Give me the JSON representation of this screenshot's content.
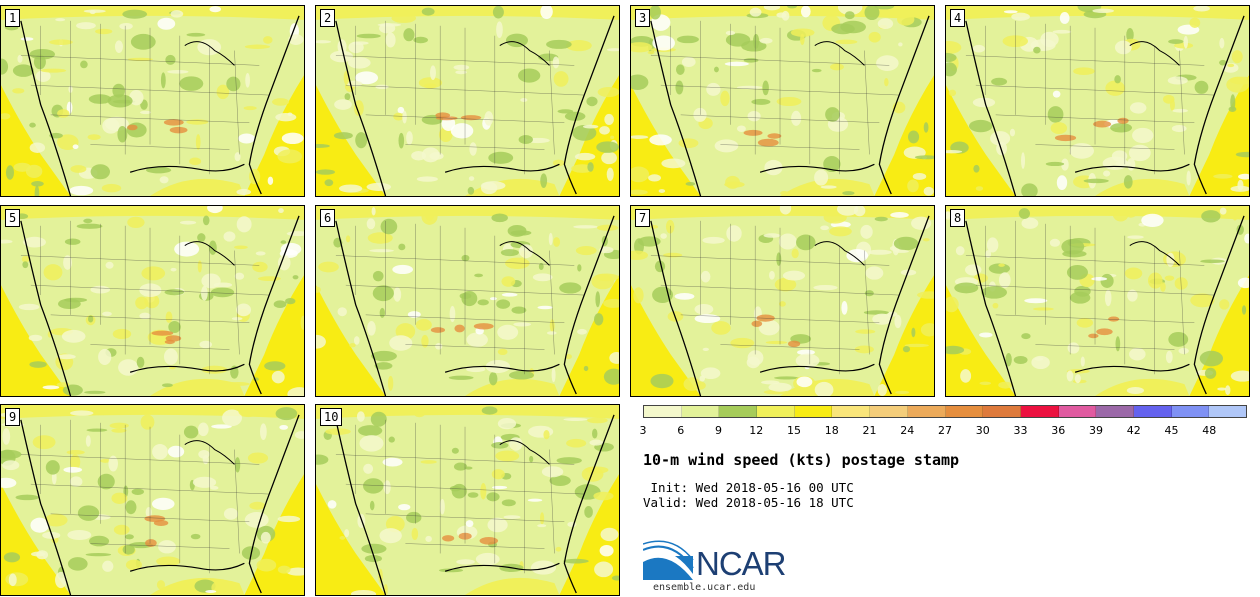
{
  "panels": [
    {
      "label": "1"
    },
    {
      "label": "2"
    },
    {
      "label": "3"
    },
    {
      "label": "4"
    },
    {
      "label": "5"
    },
    {
      "label": "6"
    },
    {
      "label": "7"
    },
    {
      "label": "8"
    },
    {
      "label": "9"
    },
    {
      "label": "10"
    }
  ],
  "colorbar": {
    "colors": [
      "#f4f8cc",
      "#e3f29a",
      "#a6cc5a",
      "#f0f05a",
      "#f8ec14",
      "#f9e57a",
      "#f4cd7a",
      "#ecaa5a",
      "#e58e3e",
      "#de7a3c",
      "#ec1140",
      "#e05aa0",
      "#9b68a8",
      "#6462ee",
      "#7f91f4",
      "#b0c7f8"
    ],
    "ticks": [
      "3",
      "6",
      "9",
      "12",
      "15",
      "18",
      "21",
      "24",
      "27",
      "30",
      "33",
      "36",
      "39",
      "42",
      "45",
      "48"
    ]
  },
  "title": "10-m wind speed (kts) postage stamp",
  "init": " Init: Wed 2018-05-16 00 UTC",
  "valid": "Valid: Wed 2018-05-16 18 UTC",
  "logo": {
    "text": "NCAR",
    "url": "ensemble.ucar.edu",
    "colors": {
      "blue": "#1b78c2",
      "dark": "#1d3f73"
    }
  }
}
